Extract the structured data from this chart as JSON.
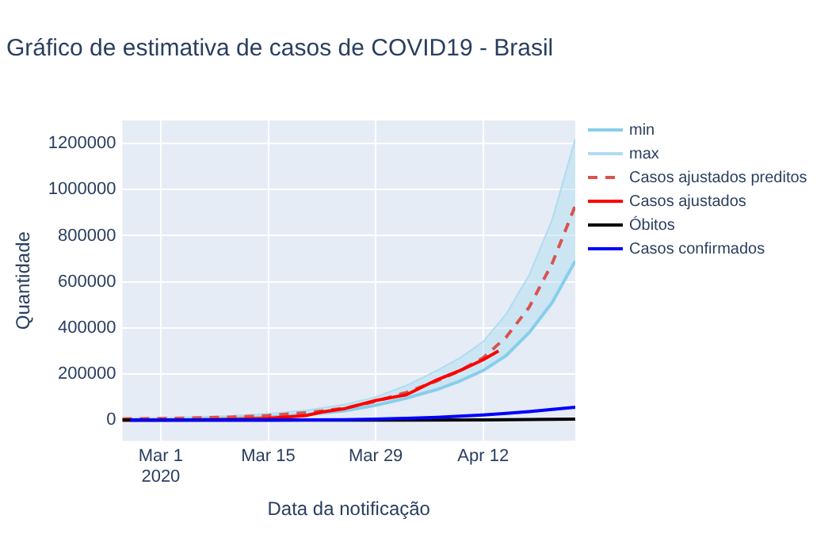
{
  "chart_data": {
    "type": "line",
    "title": "Gráfico de estimativa de casos de COVID19 - Brasil",
    "xlabel": "Data da notificação",
    "ylabel": "Quantidade",
    "xlim": [
      "2020-02-25",
      "2020-04-24"
    ],
    "xticks": [
      {
        "value": "2020-03-01",
        "label": "Mar 1\n2020"
      },
      {
        "value": "2020-03-15",
        "label": "Mar 15"
      },
      {
        "value": "2020-03-29",
        "label": "Mar 29"
      },
      {
        "value": "2020-04-12",
        "label": "Apr 12"
      }
    ],
    "ylim": [
      -90000,
      1300000
    ],
    "yticks": [
      0,
      200000,
      400000,
      600000,
      800000,
      1000000,
      1200000
    ],
    "grid": true,
    "legend": "top right",
    "marker": "none",
    "series": [
      {
        "name": "min",
        "type": "line",
        "color": "#87ceeb",
        "x": [
          "2020-02-25",
          "2020-03-01",
          "2020-03-05",
          "2020-03-10",
          "2020-03-15",
          "2020-03-20",
          "2020-03-25",
          "2020-03-29",
          "2020-04-02",
          "2020-04-06",
          "2020-04-09",
          "2020-04-12",
          "2020-04-15",
          "2020-04-18",
          "2020-04-21",
          "2020-04-24"
        ],
        "values": [
          3000,
          4000,
          6000,
          9000,
          14000,
          24000,
          40000,
          64000,
          95000,
          133000,
          170000,
          215000,
          280000,
          380000,
          510000,
          690000
        ]
      },
      {
        "name": "max",
        "type": "area",
        "color": "#b0dcf0",
        "x": [
          "2020-02-25",
          "2020-03-01",
          "2020-03-05",
          "2020-03-10",
          "2020-03-15",
          "2020-03-20",
          "2020-03-25",
          "2020-03-29",
          "2020-04-02",
          "2020-04-06",
          "2020-04-09",
          "2020-04-12",
          "2020-04-15",
          "2020-04-18",
          "2020-04-21",
          "2020-04-24"
        ],
        "values": [
          8000,
          10000,
          13000,
          18000,
          27000,
          42000,
          68000,
          100000,
          150000,
          215000,
          270000,
          340000,
          460000,
          630000,
          870000,
          1220000
        ]
      },
      {
        "name": "Casos ajustados preditos",
        "type": "line",
        "line_style": "dashed",
        "color": "#d9534f",
        "x": [
          "2020-02-25",
          "2020-03-01",
          "2020-03-05",
          "2020-03-10",
          "2020-03-15",
          "2020-03-20",
          "2020-03-25",
          "2020-03-29",
          "2020-04-02",
          "2020-04-06",
          "2020-04-09",
          "2020-04-12",
          "2020-04-15",
          "2020-04-18",
          "2020-04-21",
          "2020-04-24"
        ],
        "values": [
          5000,
          7000,
          9000,
          13000,
          20000,
          32000,
          52000,
          81000,
          120000,
          170000,
          215000,
          270000,
          360000,
          490000,
          680000,
          930000
        ]
      },
      {
        "name": "Casos ajustados",
        "type": "line",
        "line_style": "solid",
        "color": "#ff0000",
        "x": [
          "2020-02-25",
          "2020-03-01",
          "2020-03-05",
          "2020-03-10",
          "2020-03-15",
          "2020-03-20",
          "2020-03-22",
          "2020-03-25",
          "2020-03-29",
          "2020-04-02",
          "2020-04-06",
          "2020-04-09",
          "2020-04-12",
          "2020-04-14"
        ],
        "values": [
          0,
          0,
          1000,
          3000,
          8000,
          20000,
          35000,
          50000,
          85000,
          110000,
          175000,
          215000,
          262000,
          300000
        ]
      },
      {
        "name": "Óbitos",
        "type": "line",
        "line_style": "solid",
        "color": "#000000",
        "x": [
          "2020-02-25",
          "2020-03-17",
          "2020-03-29",
          "2020-04-12",
          "2020-04-24"
        ],
        "values": [
          0,
          0,
          0,
          1000,
          4000
        ]
      },
      {
        "name": "Casos confirmados",
        "type": "line",
        "line_style": "solid",
        "color": "#0000ff",
        "x": [
          "2020-02-26",
          "2020-03-05",
          "2020-03-10",
          "2020-03-15",
          "2020-03-20",
          "2020-03-25",
          "2020-03-29",
          "2020-04-02",
          "2020-04-06",
          "2020-04-09",
          "2020-04-12",
          "2020-04-15",
          "2020-04-18",
          "2020-04-21",
          "2020-04-24"
        ],
        "values": [
          0,
          0,
          0,
          0,
          1000,
          2000,
          4000,
          8000,
          12000,
          17000,
          22000,
          29000,
          37000,
          46000,
          56000
        ]
      }
    ]
  }
}
